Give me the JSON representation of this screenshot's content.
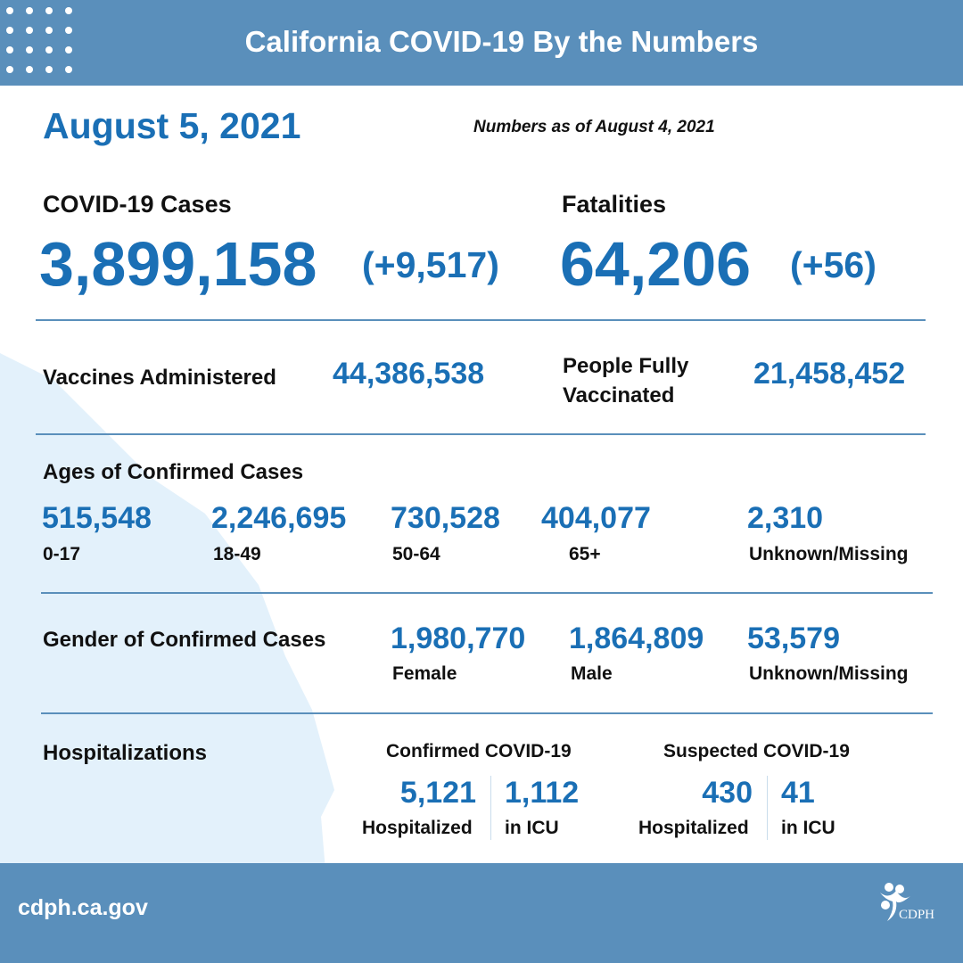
{
  "header": {
    "title": "California COVID-19 By the Numbers"
  },
  "date": "August 5, 2021",
  "as_of": "Numbers as of August 4, 2021",
  "cases": {
    "label": "COVID-19 Cases",
    "value": "3,899,158",
    "change": "(+9,517)"
  },
  "fatalities": {
    "label": "Fatalities",
    "value": "64,206",
    "change": "(+56)"
  },
  "vaccines": {
    "label": "Vaccines Administered",
    "value": "44,386,538"
  },
  "fully_vaccinated": {
    "label_line1": "People Fully",
    "label_line2": "Vaccinated",
    "value": "21,458,452"
  },
  "ages": {
    "label": "Ages of Confirmed Cases",
    "items": [
      {
        "value": "515,548",
        "label": "0-17"
      },
      {
        "value": "2,246,695",
        "label": "18-49"
      },
      {
        "value": "730,528",
        "label": "50-64"
      },
      {
        "value": "404,077",
        "label": "65+"
      },
      {
        "value": "2,310",
        "label": "Unknown/Missing"
      }
    ]
  },
  "gender": {
    "label": "Gender of Confirmed Cases",
    "items": [
      {
        "value": "1,980,770",
        "label": "Female"
      },
      {
        "value": "1,864,809",
        "label": "Male"
      },
      {
        "value": "53,579",
        "label": "Unknown/Missing"
      }
    ]
  },
  "hosp": {
    "label": "Hospitalizations",
    "confirmed": {
      "label": "Confirmed COVID-19",
      "hospitalized": "5,121",
      "hosp_label": "Hospitalized",
      "icu": "1,112",
      "icu_label": "in ICU"
    },
    "suspected": {
      "label": "Suspected COVID-19",
      "hospitalized": "430",
      "hosp_label": "Hospitalized",
      "icu": "41",
      "icu_label": "in ICU"
    }
  },
  "footer": {
    "site": "cdph.ca.gov",
    "logo": "CDPH"
  },
  "colors": {
    "band": "#5a8fbb",
    "accent": "#1a6fb5",
    "map": "#e3f1fb"
  }
}
